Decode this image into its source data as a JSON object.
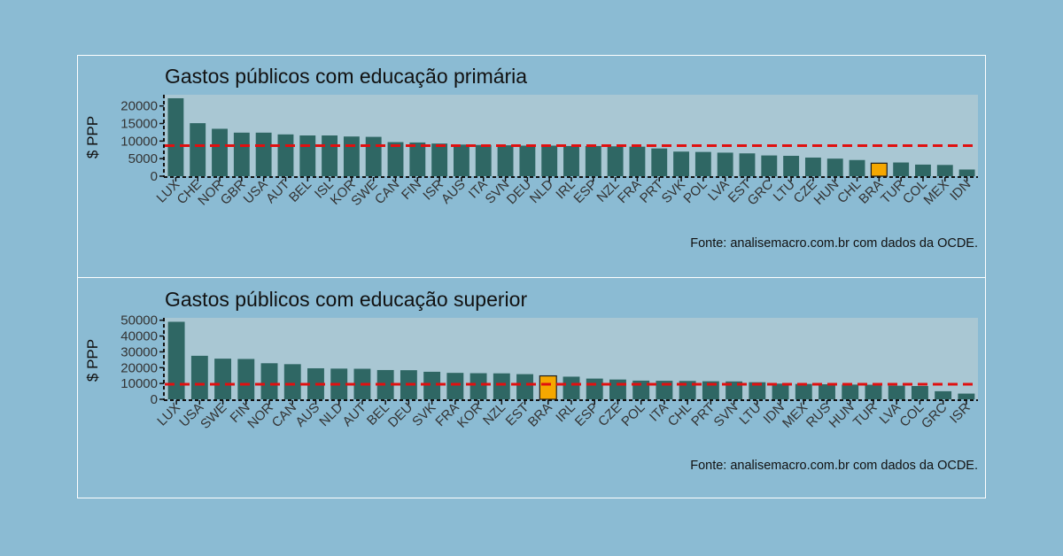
{
  "chart_data": [
    {
      "type": "bar",
      "title": "Gastos públicos com educação primária",
      "ylabel": "$ PPP",
      "xlabel": "",
      "caption": "Fonte: analisemacro.com.br com dados da OCDE.",
      "ylim": [
        0,
        23200
      ],
      "yticks": [
        0,
        5000,
        10000,
        15000,
        20000
      ],
      "reference_line": 8700,
      "highlight": "BRA",
      "colors": {
        "bar": "#2f6764",
        "highlight": "#f5a700",
        "reference": "#e01010",
        "panel": "#a9c7d3"
      },
      "categories": [
        "LUX",
        "CHE",
        "NOR",
        "GBR",
        "USA",
        "AUT",
        "BEL",
        "ISL",
        "KOR",
        "SWE",
        "CAN",
        "FIN",
        "ISR",
        "AUS",
        "ITA",
        "SVN",
        "DEU",
        "NLD",
        "IRL",
        "ESP",
        "NZL",
        "FRA",
        "PRT",
        "SVK",
        "POL",
        "LVA",
        "EST",
        "GRC",
        "LTU",
        "CZE",
        "HUN",
        "CHL",
        "BRA",
        "TUR",
        "COL",
        "MEX",
        "IDN"
      ],
      "values": [
        22200,
        15100,
        13500,
        12400,
        12400,
        11900,
        11600,
        11600,
        11300,
        11200,
        9700,
        9600,
        9300,
        9000,
        8900,
        8800,
        8700,
        8700,
        8600,
        8600,
        8500,
        8400,
        7900,
        7000,
        6900,
        6700,
        6500,
        5900,
        5800,
        5300,
        5000,
        4600,
        3700,
        3900,
        3300,
        3200,
        1900
      ]
    },
    {
      "type": "bar",
      "title": "Gastos públicos com educação superior",
      "ylabel": "$ PPP",
      "xlabel": "",
      "caption": "Fonte: analisemacro.com.br com dados da OCDE.",
      "ylim": [
        0,
        51500
      ],
      "yticks": [
        0,
        10000,
        20000,
        30000,
        40000,
        50000
      ],
      "reference_line": 9500,
      "highlight": "BRA",
      "colors": {
        "bar": "#2f6764",
        "highlight": "#f5a700",
        "reference": "#e01010",
        "panel": "#a9c7d3"
      },
      "categories": [
        "LUX",
        "USA",
        "SWE",
        "FIN",
        "NOR",
        "CAN",
        "AUS",
        "NLD",
        "AUT",
        "BEL",
        "DEU",
        "SVK",
        "FRA",
        "KOR",
        "NZL",
        "EST",
        "BRA",
        "IRL",
        "ESP",
        "CZE",
        "POL",
        "ITA",
        "CHL",
        "PRT",
        "SVN",
        "LTU",
        "IDN",
        "MEX",
        "RUS",
        "HUN",
        "TUR",
        "LVA",
        "COL",
        "GRC",
        "ISR"
      ],
      "values": [
        49000,
        27500,
        25700,
        25500,
        22800,
        22200,
        19600,
        19400,
        19300,
        18500,
        18400,
        17400,
        16700,
        16500,
        16400,
        15900,
        14800,
        14300,
        13100,
        12500,
        11800,
        11700,
        11600,
        11400,
        11300,
        10800,
        9900,
        9700,
        9500,
        9300,
        9200,
        8600,
        8400,
        5100,
        3600
      ]
    }
  ]
}
